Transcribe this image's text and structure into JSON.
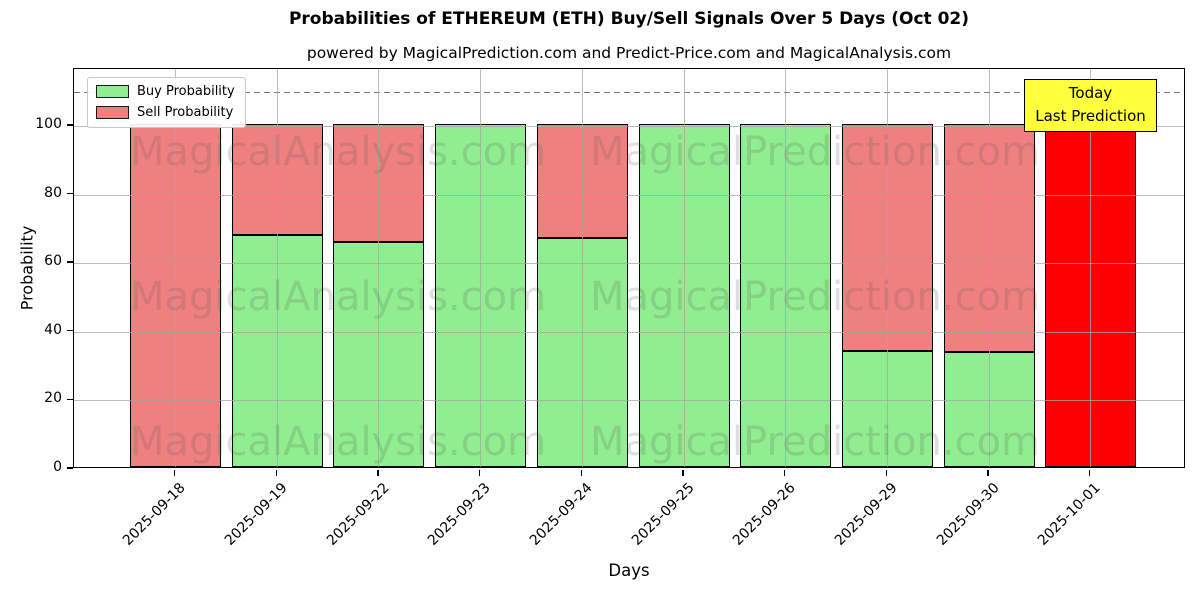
{
  "title": "Probabilities of ETHEREUM (ETH) Buy/Sell Signals Over 5 Days (Oct 02)",
  "subtitle": "powered by MagicalPrediction.com and Predict-Price.com and MagicalAnalysis.com",
  "axes": {
    "xlabel": "Days",
    "ylabel": "Probability"
  },
  "legend": {
    "buy_label": "Buy Probability",
    "sell_label": "Sell Probability"
  },
  "annotation_box": {
    "line1": "Today",
    "line2": "Last Prediction",
    "bg_color": "#ffff3d"
  },
  "watermarks": [
    "MagicalAnalysis.com",
    "MagicalPrediction.com"
  ],
  "colors": {
    "buy": "#90ee90",
    "sell": "#f08080",
    "last_bar_sell": "#ff0000",
    "grid": "#a5a5a5",
    "threshold": "#7a7a7a"
  },
  "chart_data": {
    "type": "bar",
    "stacked": true,
    "title": "Probabilities of ETHEREUM (ETH) Buy/Sell Signals Over 5 Days (Oct 02)",
    "xlabel": "Days",
    "ylabel": "Probability",
    "categories": [
      "2025-09-18",
      "2025-09-19",
      "2025-09-22",
      "2025-09-23",
      "2025-09-24",
      "2025-09-25",
      "2025-09-26",
      "2025-09-29",
      "2025-09-30",
      "2025-10-01"
    ],
    "series": [
      {
        "name": "Buy Probability",
        "color": "#90ee90",
        "values": [
          0,
          67.5,
          65.6,
          100,
          66.7,
          100,
          100,
          33.9,
          33.4,
          0
        ]
      },
      {
        "name": "Sell Probability",
        "color": "#f08080",
        "values": [
          100,
          32.5,
          34.4,
          0,
          33.3,
          0,
          0,
          66.1,
          66.6,
          100
        ]
      }
    ],
    "last_bar_sell_color": "#ff0000",
    "ylim": [
      0,
      116.6
    ],
    "yticks": [
      0,
      20,
      40,
      60,
      80,
      100
    ],
    "threshold_line": {
      "y": 110,
      "style": "dashed",
      "color": "#7a7a7a"
    },
    "grid": true,
    "legend_position": "upper left"
  }
}
